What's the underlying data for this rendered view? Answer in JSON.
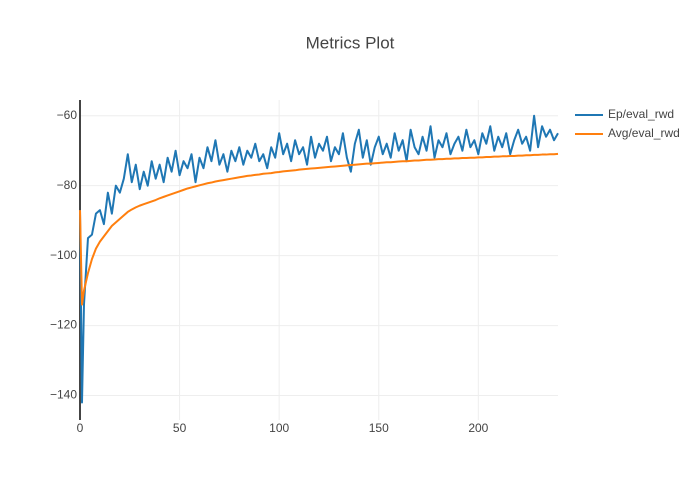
{
  "chart_data": {
    "type": "line",
    "title": "Metrics Plot",
    "x": [
      0,
      1,
      2,
      4,
      6,
      8,
      10,
      12,
      14,
      16,
      18,
      20,
      22,
      24,
      26,
      28,
      30,
      32,
      34,
      36,
      38,
      40,
      42,
      44,
      46,
      48,
      50,
      52,
      54,
      56,
      58,
      60,
      62,
      64,
      66,
      68,
      70,
      72,
      74,
      76,
      78,
      80,
      82,
      84,
      86,
      88,
      90,
      92,
      94,
      96,
      98,
      100,
      102,
      104,
      106,
      108,
      110,
      112,
      114,
      116,
      118,
      120,
      122,
      124,
      126,
      128,
      130,
      132,
      134,
      136,
      138,
      140,
      142,
      144,
      146,
      148,
      150,
      152,
      154,
      156,
      158,
      160,
      162,
      164,
      166,
      168,
      170,
      172,
      174,
      176,
      178,
      180,
      182,
      184,
      186,
      188,
      190,
      192,
      194,
      196,
      198,
      200,
      202,
      204,
      206,
      208,
      210,
      212,
      214,
      216,
      218,
      220,
      222,
      224,
      226,
      228,
      230,
      232,
      234,
      236,
      238,
      240
    ],
    "series": [
      {
        "name": "Ep/eval_rwd",
        "color": "#1f77b4",
        "values": [
          -87,
          -142,
          -114,
          -95,
          -94,
          -88,
          -87,
          -91,
          -82,
          -88,
          -80,
          -82,
          -78,
          -71,
          -79,
          -74,
          -81,
          -76,
          -80,
          -73,
          -78,
          -74,
          -79,
          -72,
          -76,
          -70,
          -77,
          -73,
          -75,
          -71,
          -79,
          -72,
          -75,
          -69,
          -73,
          -67,
          -74,
          -71,
          -76,
          -70,
          -73,
          -69,
          -74,
          -70,
          -72,
          -68,
          -73,
          -71,
          -75,
          -69,
          -72,
          -65,
          -71,
          -68,
          -73,
          -67,
          -71,
          -69,
          -74,
          -66,
          -72,
          -68,
          -70,
          -66,
          -73,
          -69,
          -71,
          -65,
          -72,
          -76,
          -68,
          -64,
          -72,
          -67,
          -74,
          -69,
          -66,
          -71,
          -68,
          -72,
          -65,
          -70,
          -67,
          -73,
          -64,
          -69,
          -71,
          -66,
          -70,
          -63,
          -72,
          -67,
          -69,
          -65,
          -71,
          -68,
          -66,
          -70,
          -64,
          -69,
          -67,
          -71,
          -65,
          -68,
          -63,
          -70,
          -66,
          -69,
          -65,
          -71,
          -67,
          -64,
          -68,
          -66,
          -70,
          -60,
          -69,
          -63,
          -66,
          -64,
          -67,
          -65
        ]
      },
      {
        "name": "Avg/eval_rwd",
        "color": "#ff7f0e",
        "values": [
          -87,
          -114,
          -110,
          -105,
          -101,
          -98,
          -96,
          -94.5,
          -93,
          -91.5,
          -90.5,
          -89.5,
          -88.5,
          -87.5,
          -86.8,
          -86.2,
          -85.7,
          -85.3,
          -84.9,
          -84.5,
          -84.1,
          -83.6,
          -83.2,
          -82.8,
          -82.4,
          -82,
          -81.6,
          -81.2,
          -80.8,
          -80.5,
          -80.2,
          -79.9,
          -79.6,
          -79.3,
          -79.1,
          -78.8,
          -78.6,
          -78.4,
          -78.2,
          -78,
          -77.8,
          -77.6,
          -77.4,
          -77.2,
          -77.1,
          -76.9,
          -76.8,
          -76.6,
          -76.5,
          -76.4,
          -76.2,
          -76.1,
          -75.9,
          -75.8,
          -75.7,
          -75.6,
          -75.4,
          -75.3,
          -75.2,
          -75.1,
          -75,
          -74.9,
          -74.8,
          -74.7,
          -74.6,
          -74.5,
          -74.4,
          -74.3,
          -74.2,
          -74.1,
          -74,
          -73.9,
          -73.8,
          -73.7,
          -73.7,
          -73.6,
          -73.5,
          -73.4,
          -73.3,
          -73.3,
          -73.2,
          -73.1,
          -73,
          -73,
          -72.9,
          -72.8,
          -72.8,
          -72.7,
          -72.6,
          -72.6,
          -72.5,
          -72.4,
          -72.4,
          -72.3,
          -72.3,
          -72.2,
          -72.2,
          -72.1,
          -72.1,
          -72,
          -72,
          -71.9,
          -71.9,
          -71.8,
          -71.8,
          -71.7,
          -71.7,
          -71.6,
          -71.6,
          -71.5,
          -71.5,
          -71.4,
          -71.4,
          -71.3,
          -71.3,
          -71.2,
          -71.2,
          -71.1,
          -71.1,
          -71,
          -71,
          -70.9
        ]
      }
    ],
    "xlim": [
      0,
      240
    ],
    "ylim": [
      -147,
      -55.5
    ],
    "xticks": [
      0,
      50,
      100,
      150,
      200
    ],
    "yticks": [
      {
        "value": -140,
        "label": "−140"
      },
      {
        "value": -120,
        "label": "−120"
      },
      {
        "value": -100,
        "label": "−100"
      },
      {
        "value": -80,
        "label": "−80"
      },
      {
        "value": -60,
        "label": "−60"
      }
    ],
    "grid": true
  }
}
